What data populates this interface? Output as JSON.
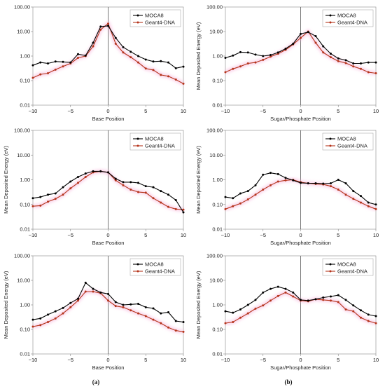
{
  "colors": {
    "moca8": "#000000",
    "geant4": "#b5341b",
    "geant4_glow": "#f6a8d6",
    "axis": "#888888",
    "zero_line": "#555555"
  },
  "legend": [
    "MOCA8",
    "Geant4-DNA"
  ],
  "panel_labels": [
    "(a)",
    "(b)"
  ],
  "ytick_labels": [
    "100.00",
    "10.00",
    "1.00",
    "0.10",
    "0.01"
  ],
  "xtick_labels": [
    "−10",
    "−5",
    "0",
    "5",
    "10"
  ],
  "chart_data": [
    {
      "type": "line",
      "scale_y": "log",
      "xlim": [
        -10,
        10
      ],
      "ylim": [
        0.01,
        100
      ],
      "xlabel": "Base Position",
      "ylabel": "",
      "legend_position": "top-right",
      "grid": false,
      "x": [
        -10,
        -9,
        -8,
        -7,
        -6,
        -5,
        -4,
        -3,
        -2,
        -1,
        0,
        1,
        2,
        3,
        4,
        5,
        6,
        7,
        8,
        9,
        10
      ],
      "series": [
        {
          "name": "MOCA8",
          "values": [
            0.42,
            0.55,
            0.5,
            0.6,
            0.58,
            0.55,
            1.2,
            1.05,
            3.5,
            16,
            17,
            5.5,
            2.3,
            1.5,
            1.0,
            0.72,
            0.6,
            0.62,
            0.55,
            0.32,
            0.37
          ]
        },
        {
          "name": "Geant4-DNA",
          "values": [
            0.13,
            0.18,
            0.2,
            0.28,
            0.38,
            0.5,
            0.85,
            1.0,
            2.5,
            12,
            21,
            3.2,
            1.4,
            0.9,
            0.55,
            0.31,
            0.27,
            0.17,
            0.15,
            0.11,
            0.075
          ]
        }
      ]
    },
    {
      "type": "line",
      "scale_y": "log",
      "xlim": [
        -10,
        10
      ],
      "ylim": [
        0.01,
        100
      ],
      "xlabel": "Sugar/Phosphate Position",
      "ylabel": "Mean Deposited Energy (eV)",
      "legend_position": "top-right",
      "grid": false,
      "x": [
        -10,
        -9,
        -8,
        -7,
        -6,
        -5,
        -4,
        -3,
        -2,
        -1,
        0,
        1,
        2,
        3,
        4,
        5,
        6,
        7,
        8,
        9,
        10
      ],
      "series": [
        {
          "name": "MOCA8",
          "values": [
            0.85,
            1.05,
            1.45,
            1.4,
            1.15,
            1.0,
            1.1,
            1.4,
            2.0,
            3.2,
            8.0,
            9.5,
            6.5,
            2.5,
            1.25,
            0.8,
            0.68,
            0.5,
            0.5,
            0.55,
            0.55
          ]
        },
        {
          "name": "Geant4-DNA",
          "values": [
            0.22,
            0.3,
            0.38,
            0.5,
            0.55,
            0.7,
            0.95,
            1.25,
            1.8,
            3.0,
            5.5,
            10.0,
            3.5,
            1.4,
            0.9,
            0.62,
            0.52,
            0.38,
            0.3,
            0.22,
            0.2
          ]
        }
      ]
    },
    {
      "type": "line",
      "scale_y": "log",
      "xlim": [
        -10,
        10
      ],
      "ylim": [
        0.01,
        100
      ],
      "xlabel": "Base Position",
      "ylabel": "Mean Deposited Energy (eV)",
      "legend_position": "top-right",
      "grid": false,
      "x": [
        -10,
        -9,
        -8,
        -7,
        -6,
        -5,
        -4,
        -3,
        -2,
        -1,
        0,
        1,
        2,
        3,
        4,
        5,
        6,
        7,
        8,
        9,
        10
      ],
      "series": [
        {
          "name": "MOCA8",
          "values": [
            0.18,
            0.2,
            0.25,
            0.28,
            0.5,
            0.85,
            1.3,
            1.8,
            2.2,
            2.2,
            2.0,
            1.1,
            0.8,
            0.8,
            0.75,
            0.55,
            0.5,
            0.35,
            0.25,
            0.15,
            0.048
          ]
        },
        {
          "name": "Geant4-DNA",
          "values": [
            0.085,
            0.09,
            0.13,
            0.17,
            0.25,
            0.45,
            0.75,
            1.3,
            2.0,
            2.2,
            2.0,
            0.95,
            0.6,
            0.4,
            0.32,
            0.3,
            0.18,
            0.12,
            0.08,
            0.065,
            0.062
          ]
        }
      ]
    },
    {
      "type": "line",
      "scale_y": "log",
      "xlim": [
        -10,
        10
      ],
      "ylim": [
        0.01,
        100
      ],
      "xlabel": "Sugar/Phosphate Position",
      "ylabel": "Mean Deposited Energy (eV)",
      "legend_position": "top-right",
      "grid": false,
      "x": [
        -10,
        -9,
        -8,
        -7,
        -6,
        -5,
        -4,
        -3,
        -2,
        -1,
        0,
        1,
        2,
        3,
        4,
        5,
        6,
        7,
        8,
        9,
        10
      ],
      "series": [
        {
          "name": "MOCA8",
          "values": [
            0.2,
            0.18,
            0.28,
            0.35,
            0.6,
            1.6,
            1.9,
            1.7,
            1.2,
            0.95,
            0.75,
            0.72,
            0.72,
            0.7,
            0.72,
            1.0,
            0.72,
            0.35,
            0.22,
            0.12,
            0.1
          ]
        },
        {
          "name": "Geant4-DNA",
          "values": [
            0.065,
            0.085,
            0.11,
            0.16,
            0.25,
            0.4,
            0.6,
            0.85,
            0.95,
            1.0,
            0.8,
            0.72,
            0.68,
            0.65,
            0.55,
            0.4,
            0.25,
            0.17,
            0.12,
            0.085,
            0.065
          ]
        }
      ]
    },
    {
      "type": "line",
      "scale_y": "log",
      "xlim": [
        -10,
        10
      ],
      "ylim": [
        0.01,
        100
      ],
      "xlabel": "Base Position",
      "ylabel": "Mean Deposited Energy (eV)",
      "legend_position": "top-right",
      "grid": false,
      "x": [
        -10,
        -9,
        -8,
        -7,
        -6,
        -5,
        -4,
        -3,
        -2,
        -1,
        0,
        1,
        2,
        3,
        4,
        5,
        6,
        7,
        8,
        9,
        10
      ],
      "series": [
        {
          "name": "MOCA8",
          "values": [
            0.25,
            0.28,
            0.4,
            0.55,
            0.75,
            1.2,
            1.8,
            8.0,
            4.5,
            3.2,
            2.8,
            1.3,
            1.0,
            1.05,
            1.1,
            0.8,
            0.72,
            0.45,
            0.5,
            0.22,
            0.2
          ]
        },
        {
          "name": "Geant4-DNA",
          "values": [
            0.13,
            0.15,
            0.2,
            0.28,
            0.45,
            0.8,
            1.5,
            3.5,
            3.5,
            3.0,
            1.5,
            0.9,
            0.8,
            0.6,
            0.45,
            0.35,
            0.25,
            0.18,
            0.12,
            0.09,
            0.08
          ]
        }
      ]
    },
    {
      "type": "line",
      "scale_y": "log",
      "xlim": [
        -10,
        10
      ],
      "ylim": [
        0.01,
        100
      ],
      "xlabel": "Sugar/Phosphate Position",
      "ylabel": "Mean Deposited Energy (eV)",
      "legend_position": "top-right",
      "grid": false,
      "x": [
        -10,
        -9,
        -8,
        -7,
        -6,
        -5,
        -4,
        -3,
        -2,
        -1,
        0,
        1,
        2,
        3,
        4,
        5,
        6,
        7,
        8,
        9,
        10
      ],
      "series": [
        {
          "name": "MOCA8",
          "values": [
            0.55,
            0.48,
            0.65,
            1.0,
            1.6,
            3.2,
            4.5,
            5.5,
            4.5,
            3.2,
            1.6,
            1.5,
            1.7,
            2.0,
            2.2,
            2.5,
            1.6,
            0.95,
            0.6,
            0.4,
            0.35
          ]
        },
        {
          "name": "Geant4-DNA",
          "values": [
            0.18,
            0.2,
            0.3,
            0.45,
            0.7,
            0.95,
            1.5,
            2.3,
            3.2,
            2.2,
            1.5,
            1.4,
            1.7,
            1.6,
            1.5,
            1.3,
            0.65,
            0.55,
            0.3,
            0.22,
            0.18
          ]
        }
      ]
    }
  ]
}
